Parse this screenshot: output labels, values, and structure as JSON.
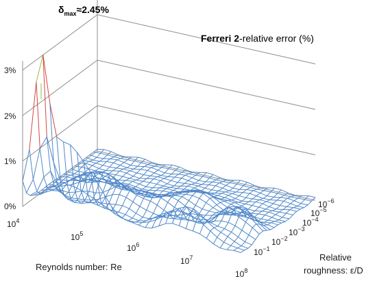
{
  "chart_data": {
    "type": "surface",
    "title_bold": "Ferreri 2",
    "title_rest": "-relative error (%)",
    "annotation": {
      "symbol": "δ",
      "subscript": "max",
      "text": "≈2.45%",
      "value_percent": 2.45
    },
    "x_axis": {
      "label": "Reynolds number: Re",
      "ticks": [
        {
          "base": "10",
          "exp": "4"
        },
        {
          "base": "10",
          "exp": "5"
        },
        {
          "base": "10",
          "exp": "6"
        },
        {
          "base": "10",
          "exp": "7"
        },
        {
          "base": "10",
          "exp": "8"
        }
      ],
      "log_range": [
        4,
        8
      ]
    },
    "y_axis": {
      "label_line1": "Relative",
      "label_line2": "roughness: ε/D",
      "ticks": [
        {
          "base": "10",
          "exp": "−6"
        },
        {
          "base": "10",
          "exp": "−5"
        },
        {
          "base": "10",
          "exp": "−4"
        },
        {
          "base": "10",
          "exp": "−3"
        },
        {
          "base": "10",
          "exp": "−2"
        },
        {
          "base": "10",
          "exp": "−1"
        }
      ],
      "log_range": [
        -6,
        -1
      ]
    },
    "z_axis": {
      "unit": "%",
      "ticks": [
        "0%",
        "1%",
        "2%",
        "3%"
      ],
      "range": [
        0,
        3
      ],
      "grid": true
    },
    "color_bands": [
      {
        "range": "0%-2%",
        "color": "#4f87c8"
      },
      {
        "range": "2%-3%",
        "color": "#d64541"
      },
      {
        "range": "3%-4%",
        "color": "#8fbf3f"
      }
    ],
    "surface_features": [
      {
        "desc": "peak",
        "re_log10": 4.35,
        "roughness_log10": -1.0,
        "error_percent": 2.45
      },
      {
        "desc": "ridge along smooth-pipe edge",
        "roughness_log10": -1.0,
        "error_percent_range": [
          1.0,
          2.45
        ]
      },
      {
        "desc": "secondary bump",
        "re_log10": 4.6,
        "roughness_log10": -3.5,
        "error_percent": 0.9
      },
      {
        "desc": "plateau",
        "re_log10": 6.9,
        "roughness_log10": -1.8,
        "error_percent": 0.75
      }
    ]
  }
}
